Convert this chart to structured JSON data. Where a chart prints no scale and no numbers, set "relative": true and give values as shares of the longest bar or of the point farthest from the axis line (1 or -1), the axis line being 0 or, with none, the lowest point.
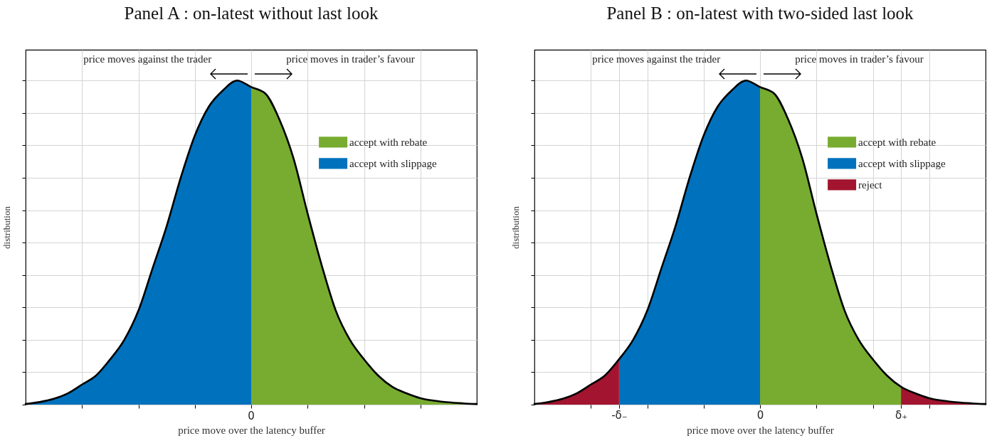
{
  "chart_data": [
    {
      "type": "area",
      "title": "Panel A : on-latest without last look",
      "xlabel": "price move over the latency buffer",
      "ylabel": "distribution",
      "relative": true,
      "grid": true,
      "legend": "top right",
      "tick_labels": "x",
      "annotations": [
        "price moves against the trader",
        "price moves in trader’s favour",
        "0"
      ],
      "categories": [
        null,
        null,
        null,
        null,
        null,
        null,
        null,
        null,
        null,
        null,
        null,
        null,
        null,
        null,
        null,
        null,
        null,
        null,
        null,
        null,
        null,
        null,
        null,
        null,
        null,
        null,
        null,
        null,
        null,
        null,
        null,
        null,
        null
      ],
      "series": [
        {
          "name": "accept with rebate",
          "color": "#77ac30",
          "values": [
            null,
            null,
            null,
            null,
            null,
            null,
            null,
            null,
            null,
            null,
            null,
            null,
            null,
            null,
            null,
            null,
            0.98,
            0.96,
            0.88,
            0.76,
            0.59,
            0.43,
            0.29,
            0.2,
            0.14,
            0.09,
            0.055,
            0.035,
            0.02,
            0.012,
            0.007,
            0.004,
            0.002
          ]
        },
        {
          "name": "accept with slippage",
          "color": "#0072bd",
          "values": [
            0.002,
            0.008,
            0.018,
            0.035,
            0.062,
            0.09,
            0.14,
            0.2,
            0.29,
            0.42,
            0.55,
            0.7,
            0.83,
            0.92,
            0.97,
            1,
            0.98,
            null,
            null,
            null,
            null,
            null,
            null,
            null,
            null,
            null,
            null,
            null,
            null,
            null,
            null,
            null,
            null
          ]
        },
        {
          "type": "line",
          "color": "#000000",
          "values": [
            0.002,
            0.008,
            0.018,
            0.035,
            0.062,
            0.09,
            0.14,
            0.2,
            0.29,
            0.42,
            0.55,
            0.7,
            0.83,
            0.92,
            0.97,
            1,
            0.98,
            0.96,
            0.88,
            0.76,
            0.59,
            0.43,
            0.29,
            0.2,
            0.14,
            0.09,
            0.055,
            0.035,
            0.02,
            0.012,
            0.007,
            0.004,
            0.002
          ]
        }
      ]
    },
    {
      "type": "area",
      "title": "Panel B : on-latest with two-sided last look",
      "xlabel": "price move over the latency buffer",
      "ylabel": "distribution",
      "relative": true,
      "grid": true,
      "legend": "top right",
      "tick_labels": "x",
      "annotations": [
        "price moves against the trader",
        "price moves in trader’s favour"
      ],
      "categories": [
        null,
        null,
        null,
        null,
        null,
        null,
        "-δ₋",
        null,
        null,
        null,
        null,
        null,
        null,
        null,
        null,
        null,
        "0",
        null,
        null,
        null,
        null,
        null,
        null,
        null,
        null,
        null,
        "δ₊",
        null,
        null,
        null,
        null,
        null,
        null
      ],
      "series": [
        {
          "name": "accept with rebate",
          "color": "#77ac30",
          "values": [
            null,
            null,
            null,
            null,
            null,
            null,
            null,
            null,
            null,
            null,
            null,
            null,
            null,
            null,
            null,
            null,
            0.98,
            0.96,
            0.88,
            0.76,
            0.59,
            0.43,
            0.29,
            0.2,
            0.14,
            0.09,
            0.055,
            null,
            null,
            null,
            null,
            null,
            null
          ]
        },
        {
          "name": "accept with slippage",
          "color": "#0072bd",
          "values": [
            null,
            null,
            null,
            null,
            null,
            null,
            0.14,
            0.2,
            0.29,
            0.42,
            0.55,
            0.7,
            0.83,
            0.92,
            0.97,
            1,
            0.98,
            null,
            null,
            null,
            null,
            null,
            null,
            null,
            null,
            null,
            null,
            null,
            null,
            null,
            null,
            null,
            null
          ]
        },
        {
          "name": "reject",
          "color": "#a2142f",
          "values": [
            0.002,
            0.008,
            0.018,
            0.035,
            0.062,
            0.09,
            0.14,
            null,
            null,
            null,
            null,
            null,
            null,
            null,
            null,
            null,
            null,
            null,
            null,
            null,
            null,
            null,
            null,
            null,
            null,
            null,
            0.055,
            0.035,
            0.02,
            0.012,
            0.007,
            0.004,
            0.002
          ]
        },
        {
          "type": "line",
          "color": "#000000",
          "values": [
            0.002,
            0.008,
            0.018,
            0.035,
            0.062,
            0.09,
            0.14,
            0.2,
            0.29,
            0.42,
            0.55,
            0.7,
            0.83,
            0.92,
            0.97,
            1,
            0.98,
            0.96,
            0.88,
            0.76,
            0.59,
            0.43,
            0.29,
            0.2,
            0.14,
            0.09,
            0.055,
            0.035,
            0.02,
            0.012,
            0.007,
            0.004,
            0.002
          ]
        }
      ]
    }
  ]
}
